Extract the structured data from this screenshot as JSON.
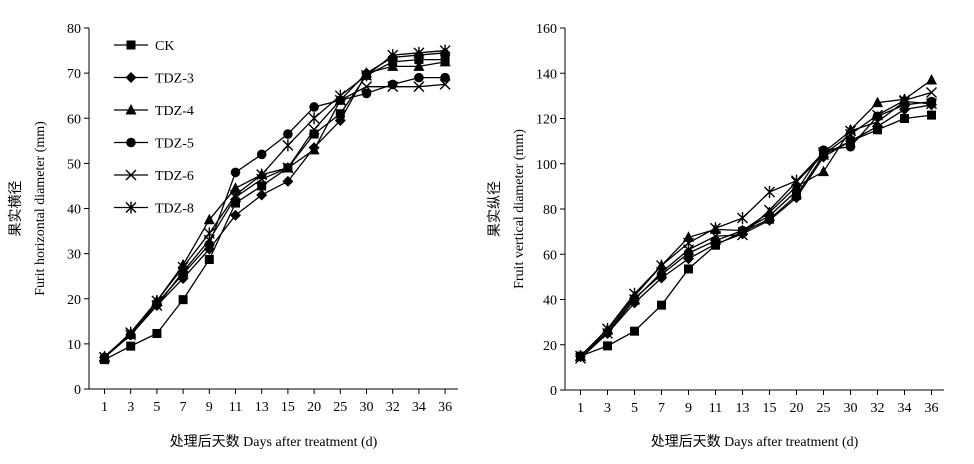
{
  "chart_data": [
    {
      "type": "line",
      "title": "",
      "xlabel": "处理后天数 Days after treatment (d)",
      "ylabel_zh": "果实横径",
      "ylabel": "Furit horizontal diameter (mm)",
      "categories": [
        "1",
        "3",
        "5",
        "7",
        "9",
        "11",
        "13",
        "15",
        "20",
        "25",
        "30",
        "32",
        "34",
        "36"
      ],
      "ylim": [
        0,
        80
      ],
      "yticks": [
        0,
        10,
        20,
        30,
        40,
        50,
        60,
        70,
        80
      ],
      "legend_position": "top-left",
      "series": [
        {
          "name": "CK",
          "marker": "square",
          "values": [
            6.5,
            9.5,
            12.3,
            19.8,
            28.7,
            41.2,
            45.0,
            49.0,
            56.5,
            61.0,
            69.5,
            72.5,
            73.0,
            73.0
          ]
        },
        {
          "name": "TDZ-3",
          "marker": "diamond",
          "values": [
            7.0,
            12.0,
            18.5,
            24.5,
            31.0,
            38.5,
            43.0,
            46.0,
            53.5,
            59.5,
            70.0,
            73.5,
            74.0,
            74.5
          ]
        },
        {
          "name": "TDZ-4",
          "marker": "triangle",
          "values": [
            7.2,
            12.3,
            19.5,
            27.5,
            37.5,
            44.5,
            47.5,
            49.0,
            53.0,
            64.0,
            70.0,
            71.5,
            71.5,
            72.5
          ]
        },
        {
          "name": "TDZ-5",
          "marker": "circle",
          "values": [
            7.0,
            12.0,
            19.0,
            25.5,
            32.0,
            48.0,
            52.0,
            56.5,
            62.5,
            64.0,
            65.5,
            67.5,
            69.0,
            69.0
          ]
        },
        {
          "name": "TDZ-6",
          "marker": "x",
          "values": [
            7.0,
            12.0,
            18.5,
            26.0,
            33.0,
            42.5,
            46.5,
            49.0,
            57.5,
            64.0,
            67.0,
            67.0,
            67.0,
            67.5
          ]
        },
        {
          "name": "TDZ-8",
          "marker": "asterisk",
          "values": [
            7.0,
            12.5,
            19.5,
            27.0,
            34.5,
            43.0,
            47.5,
            54.0,
            60.0,
            65.0,
            69.5,
            74.0,
            74.5,
            75.0
          ]
        }
      ]
    },
    {
      "type": "line",
      "title": "",
      "xlabel": "处理后天数 Days after treatment (d)",
      "ylabel_zh": "果实纵径",
      "ylabel": "Fruit vertical diameter (mm)",
      "categories": [
        "1",
        "3",
        "5",
        "7",
        "9",
        "11",
        "13",
        "15",
        "20",
        "25",
        "30",
        "32",
        "34",
        "36"
      ],
      "ylim": [
        0,
        160
      ],
      "yticks": [
        0,
        20,
        40,
        60,
        80,
        100,
        120,
        140,
        160
      ],
      "series": [
        {
          "name": "CK",
          "marker": "square",
          "values": [
            15,
            19.5,
            26,
            37.5,
            53.5,
            64,
            70,
            75.5,
            86,
            104,
            110,
            115,
            120,
            121.5
          ]
        },
        {
          "name": "TDZ-3",
          "marker": "diamond",
          "values": [
            15,
            25,
            38.5,
            49.5,
            58,
            64.5,
            69,
            75,
            85,
            103,
            110,
            116.5,
            124,
            126
          ]
        },
        {
          "name": "TDZ-4",
          "marker": "triangle",
          "values": [
            15,
            26.5,
            41.5,
            55,
            67.5,
            71,
            70.5,
            78.5,
            90,
            96.5,
            115,
            127,
            128.5,
            137
          ]
        },
        {
          "name": "TDZ-5",
          "marker": "circle",
          "values": [
            15,
            25.5,
            40.5,
            51,
            60.5,
            66,
            70.5,
            77,
            88,
            106,
            107.5,
            121,
            126,
            127.5
          ]
        },
        {
          "name": "TDZ-6",
          "marker": "x",
          "values": [
            14,
            25,
            40,
            52,
            62,
            68,
            68.5,
            79.5,
            92,
            104,
            113,
            121.5,
            128,
            131.5
          ]
        },
        {
          "name": "TDZ-8",
          "marker": "asterisk",
          "values": [
            15,
            27,
            42.5,
            55,
            65,
            71.5,
            76,
            87.5,
            92.5,
            105,
            114.5,
            118.5,
            127.5,
            126.5
          ]
        }
      ]
    }
  ]
}
